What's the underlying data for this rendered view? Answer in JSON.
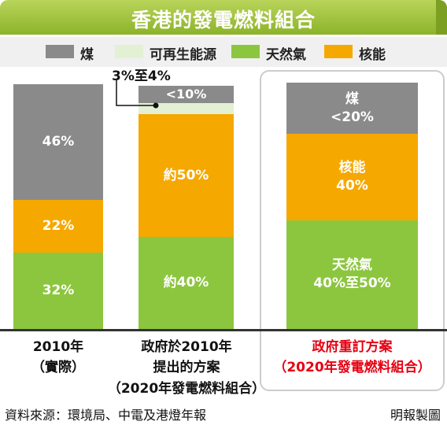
{
  "header": {
    "title": "香港的發電燃料組合"
  },
  "legend": [
    {
      "label": "煤",
      "color": "#8a8a8a"
    },
    {
      "label": "可再生能源",
      "color": "#e4f0d3"
    },
    {
      "label": "天然氣",
      "color": "#8cc63f"
    },
    {
      "label": "核能",
      "color": "#f5a800"
    }
  ],
  "chart_data": {
    "type": "bar",
    "stacked": true,
    "title": "香港的發電燃料組合",
    "categories": [
      "2010年（實際）",
      "政府於2010年提出的方案（2020年發電燃料組合）",
      "政府重訂方案（2020年發電燃料組合）"
    ],
    "series": [
      {
        "name": "天然氣",
        "values": [
          32,
          40,
          45
        ],
        "labels": [
          "32%",
          "約40%",
          "40%至50%"
        ]
      },
      {
        "name": "核能",
        "values": [
          22,
          50,
          40
        ],
        "labels": [
          "22%",
          "約50%",
          "40%"
        ]
      },
      {
        "name": "可再生能源",
        "values": [
          0,
          3.5,
          0
        ],
        "labels": [
          "",
          "3%至4%",
          ""
        ]
      },
      {
        "name": "煤",
        "values": [
          46,
          6.5,
          15
        ],
        "labels": [
          "46%",
          "<10%",
          "<20%"
        ]
      }
    ],
    "series_order": "bottom-to-top",
    "ylim": [
      0,
      100
    ],
    "annotation": "3%至4%",
    "colors": {
      "coal": "#8a8a8a",
      "renewable": "#e4f0d3",
      "gas": "#8cc63f",
      "nuclear": "#f5a800"
    }
  },
  "bars": [
    {
      "segments": [
        {
          "label": "32%",
          "color": "#8cc63f"
        },
        {
          "label": "22%",
          "color": "#f5a800"
        },
        {
          "label": "46%",
          "color": "#8a8a8a"
        }
      ],
      "category_lines": [
        "2010年",
        "（實際）"
      ]
    },
    {
      "segments": [
        {
          "label": "約40%",
          "color": "#8cc63f"
        },
        {
          "label": "約50%",
          "color": "#f5a800"
        },
        {
          "label": "",
          "color": "#e4f0d3"
        },
        {
          "label": "<10%",
          "color": "#8a8a8a"
        }
      ],
      "category_lines": [
        "政府於2010年",
        "提出的方案",
        "（2020年發電燃料組合）"
      ]
    },
    {
      "segments": [
        {
          "label": "天然氣",
          "label2": "40%至50%",
          "color": "#8cc63f"
        },
        {
          "label": "核能",
          "label2": "40%",
          "color": "#f5a800"
        },
        {
          "label": "煤",
          "label2": "<20%",
          "color": "#8a8a8a"
        }
      ],
      "category_lines": [
        "政府重訂方案",
        "（2020年發電燃料組合）"
      ]
    }
  ],
  "footer": {
    "source": "資料來源：環境局、中電及港燈年報",
    "credit": "明報製圖"
  }
}
